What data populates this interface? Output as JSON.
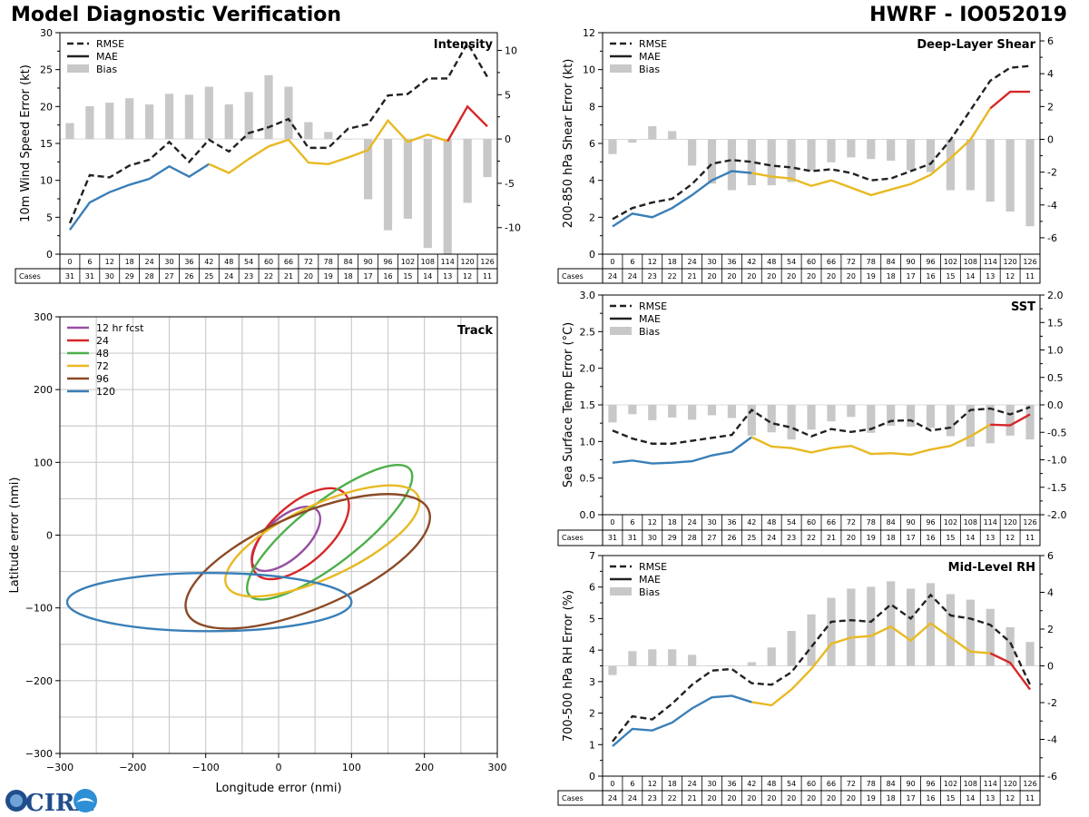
{
  "header": {
    "title_left": "Model Diagnostic Verification",
    "title_right": "HWRF - IO052019"
  },
  "colors": {
    "mae_blue": "#3a7fb8",
    "mae_yellow": "#e8b923",
    "mae_red": "#d62728",
    "rmse": "#222222",
    "bias": "#c8c8c8"
  },
  "legend_labels": {
    "rmse": "RMSE",
    "mae": "MAE",
    "bias": "Bias"
  },
  "cases_label": "Cases",
  "logo": {
    "text": "CIRA"
  },
  "chart_data": [
    {
      "id": "intensity",
      "type": "line+bar",
      "title": "Intensity",
      "ylabel": "10m Wind Speed Error (kt)",
      "ylim": [
        0,
        30
      ],
      "yticks": [
        0,
        5,
        10,
        15,
        20,
        25,
        30
      ],
      "y2lim": [
        -13,
        12
      ],
      "y2ticks": [
        -10,
        -5,
        0,
        5,
        10
      ],
      "hours": [
        0,
        6,
        12,
        18,
        24,
        30,
        36,
        42,
        48,
        54,
        60,
        66,
        72,
        78,
        84,
        90,
        96,
        102,
        108,
        114,
        120,
        126
      ],
      "cases": [
        31,
        31,
        30,
        29,
        28,
        27,
        26,
        25,
        24,
        23,
        22,
        21,
        20,
        19,
        18,
        17,
        16,
        15,
        14,
        13,
        12,
        11
      ],
      "rmse": [
        4.2,
        10.7,
        10.4,
        12.0,
        12.8,
        15.2,
        12.5,
        15.5,
        13.9,
        16.4,
        17.2,
        18.3,
        14.4,
        14.4,
        17.0,
        17.6,
        21.5,
        21.7,
        23.8,
        23.8,
        28.6,
        24.0
      ],
      "mae": [
        3.3,
        7.0,
        8.4,
        9.4,
        10.2,
        11.9,
        10.5,
        12.2,
        11.0,
        12.9,
        14.6,
        15.5,
        12.4,
        12.2,
        13.1,
        14.1,
        18.1,
        15.2,
        16.2,
        15.3,
        20.0,
        17.3
      ],
      "bias": [
        1.8,
        3.7,
        4.1,
        4.6,
        3.9,
        5.1,
        5.0,
        5.9,
        3.9,
        5.3,
        7.2,
        5.9,
        1.9,
        0.8,
        0.0,
        -6.8,
        -10.3,
        -9.0,
        -12.3,
        -13.0,
        -7.2,
        -4.3
      ]
    },
    {
      "id": "shear",
      "type": "line+bar",
      "title": "Deep-Layer Shear",
      "ylabel": "200-850 hPa Shear Error (kt)",
      "ylim": [
        0,
        12
      ],
      "yticks": [
        0,
        2,
        4,
        6,
        8,
        10,
        12
      ],
      "y2lim": [
        -7,
        6.5
      ],
      "y2ticks": [
        -6,
        -4,
        -2,
        0,
        2,
        4,
        6
      ],
      "hours": [
        0,
        6,
        12,
        18,
        24,
        30,
        36,
        42,
        48,
        54,
        60,
        66,
        72,
        78,
        84,
        90,
        96,
        102,
        108,
        114,
        120,
        126
      ],
      "cases": [
        24,
        24,
        23,
        22,
        21,
        20,
        20,
        20,
        20,
        20,
        20,
        20,
        20,
        19,
        18,
        17,
        16,
        15,
        14,
        13,
        12,
        11
      ],
      "rmse": [
        1.9,
        2.5,
        2.8,
        3.0,
        3.8,
        4.9,
        5.1,
        5.0,
        4.8,
        4.7,
        4.5,
        4.6,
        4.4,
        4.0,
        4.1,
        4.5,
        4.9,
        6.2,
        7.8,
        9.4,
        10.1,
        10.2
      ],
      "mae": [
        1.5,
        2.2,
        2.0,
        2.5,
        3.2,
        4.0,
        4.5,
        4.4,
        4.2,
        4.1,
        3.7,
        4.0,
        3.6,
        3.2,
        3.5,
        3.8,
        4.3,
        5.2,
        6.2,
        7.9,
        8.8,
        8.8
      ],
      "bias": [
        -0.9,
        -0.2,
        0.8,
        0.5,
        -1.6,
        -2.7,
        -3.1,
        -2.8,
        -2.8,
        -2.6,
        -1.9,
        -1.4,
        -1.1,
        -1.2,
        -1.3,
        -1.9,
        -2.0,
        -3.1,
        -3.1,
        -3.8,
        -4.4,
        -5.3
      ]
    },
    {
      "id": "sst",
      "type": "line+bar",
      "title": "SST",
      "ylabel": "Sea Surface Temp Error (°C)",
      "ylim": [
        0,
        3.0
      ],
      "yticks": [
        0.0,
        0.5,
        1.0,
        1.5,
        2.0,
        2.5,
        3.0
      ],
      "y2lim": [
        -2.0,
        2.0
      ],
      "y2ticks": [
        -2.0,
        -1.5,
        -1.0,
        -0.5,
        0.0,
        0.5,
        1.0,
        1.5,
        2.0
      ],
      "hours": [
        0,
        6,
        12,
        18,
        24,
        30,
        36,
        42,
        48,
        54,
        60,
        66,
        72,
        78,
        84,
        90,
        96,
        102,
        108,
        114,
        120,
        126
      ],
      "cases": [
        31,
        31,
        30,
        29,
        28,
        27,
        26,
        25,
        24,
        23,
        22,
        21,
        20,
        19,
        18,
        17,
        16,
        15,
        14,
        13,
        12,
        11
      ],
      "rmse": [
        1.15,
        1.04,
        0.97,
        0.97,
        1.01,
        1.05,
        1.09,
        1.43,
        1.25,
        1.19,
        1.07,
        1.17,
        1.13,
        1.17,
        1.28,
        1.29,
        1.15,
        1.19,
        1.43,
        1.45,
        1.37,
        1.47
      ],
      "mae": [
        0.71,
        0.74,
        0.7,
        0.71,
        0.73,
        0.81,
        0.86,
        1.06,
        0.93,
        0.91,
        0.85,
        0.91,
        0.94,
        0.83,
        0.84,
        0.82,
        0.89,
        0.94,
        1.07,
        1.23,
        1.22,
        1.37
      ],
      "bias": [
        -0.32,
        -0.17,
        -0.28,
        -0.23,
        -0.27,
        -0.19,
        -0.24,
        -0.56,
        -0.5,
        -0.63,
        -0.45,
        -0.3,
        -0.22,
        -0.51,
        -0.38,
        -0.4,
        -0.42,
        -0.57,
        -0.76,
        -0.7,
        -0.56,
        -0.63
      ]
    },
    {
      "id": "rh",
      "type": "line+bar",
      "title": "Mid-Level RH",
      "ylabel": "700-500 hPa RH Error (%)",
      "ylim": [
        0,
        7
      ],
      "yticks": [
        0,
        1,
        2,
        3,
        4,
        5,
        6,
        7
      ],
      "y2lim": [
        -6,
        6
      ],
      "y2ticks": [
        -6,
        -4,
        -2,
        0,
        2,
        4,
        6
      ],
      "hours": [
        0,
        6,
        12,
        18,
        24,
        30,
        36,
        42,
        48,
        54,
        60,
        66,
        72,
        78,
        84,
        90,
        96,
        102,
        108,
        114,
        120,
        126
      ],
      "cases": [
        24,
        24,
        23,
        22,
        21,
        20,
        20,
        20,
        20,
        20,
        20,
        20,
        20,
        19,
        18,
        17,
        16,
        15,
        14,
        13,
        12,
        11
      ],
      "rmse": [
        1.1,
        1.9,
        1.8,
        2.3,
        2.9,
        3.35,
        3.4,
        2.95,
        2.9,
        3.3,
        4.1,
        4.9,
        4.95,
        4.9,
        5.45,
        5.0,
        5.75,
        5.1,
        5.0,
        4.8,
        4.25,
        2.9
      ],
      "mae": [
        0.95,
        1.5,
        1.45,
        1.7,
        2.15,
        2.5,
        2.55,
        2.35,
        2.25,
        2.75,
        3.4,
        4.2,
        4.4,
        4.45,
        4.75,
        4.3,
        4.85,
        4.4,
        3.95,
        3.9,
        3.6,
        2.75
      ],
      "bias": [
        -0.5,
        0.8,
        0.9,
        0.9,
        0.6,
        0.0,
        0.0,
        0.2,
        1.0,
        1.9,
        2.8,
        3.7,
        4.2,
        4.3,
        4.6,
        4.2,
        4.5,
        3.9,
        3.6,
        3.1,
        2.1,
        1.3
      ]
    },
    {
      "id": "track",
      "type": "ellipse",
      "title": "Track",
      "xlabel": "Longitude error (nmi)",
      "ylabel": "Latitude error (nmi)",
      "xlim": [
        -300,
        300
      ],
      "ylim": [
        -300,
        300
      ],
      "xticks": [
        -300,
        -200,
        -100,
        0,
        100,
        200,
        300
      ],
      "yticks": [
        -300,
        -200,
        -100,
        0,
        100,
        200,
        300
      ],
      "ellipses": [
        {
          "label": "12 hr fcst",
          "color": "#984ea3",
          "cx": 10,
          "cy": -5,
          "rx": 58,
          "ry": 28,
          "angle": 42
        },
        {
          "label": "24",
          "color": "#d62728",
          "cx": 30,
          "cy": 2,
          "rx": 82,
          "ry": 40,
          "angle": 42
        },
        {
          "label": "48",
          "color": "#4daf4a",
          "cx": 70,
          "cy": 4,
          "rx": 140,
          "ry": 42,
          "angle": 38
        },
        {
          "label": "72",
          "color": "#e8b923",
          "cx": 60,
          "cy": -8,
          "rx": 145,
          "ry": 50,
          "angle": 25
        },
        {
          "label": "96",
          "color": "#8b4a26",
          "cx": 40,
          "cy": -36,
          "rx": 180,
          "ry": 65,
          "angle": 23
        },
        {
          "label": "120",
          "color": "#3a7fb8",
          "cx": -95,
          "cy": -92,
          "rx": 195,
          "ry": 40,
          "angle": 0
        }
      ]
    }
  ]
}
